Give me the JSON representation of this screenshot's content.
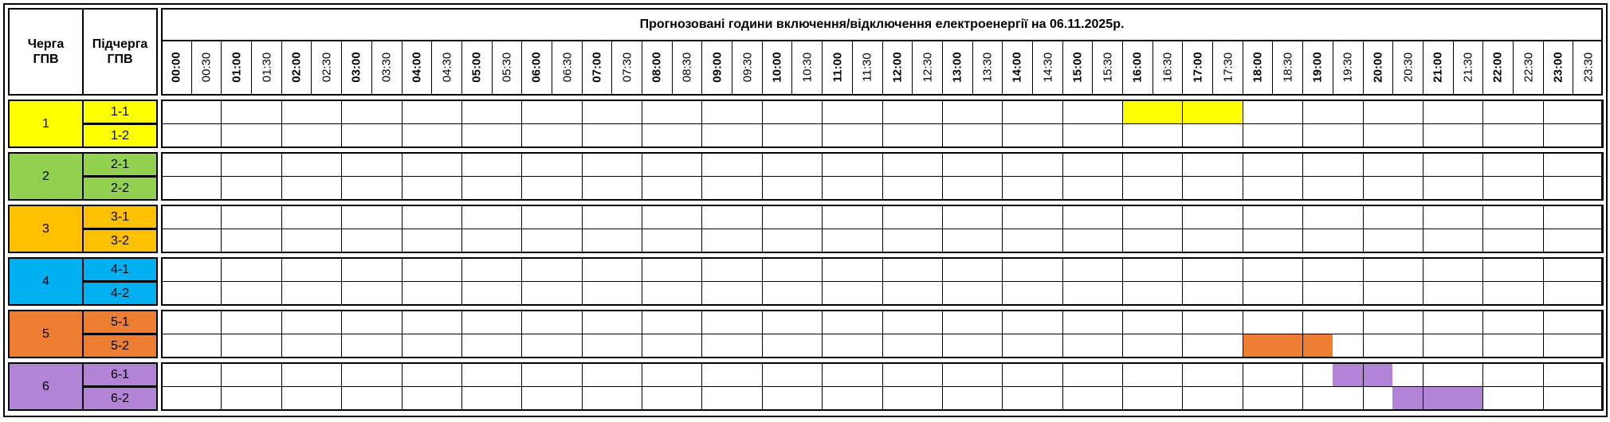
{
  "header": {
    "queue_label": "Черга ГПВ",
    "subqueue_label": "Підчерга ГПВ",
    "title": "Прогнозовані години включення/відключення електроенергії на 06.11.2025р."
  },
  "times": [
    "00:00",
    "00:30",
    "01:00",
    "01:30",
    "02:00",
    "02:30",
    "03:00",
    "03:30",
    "04:00",
    "04:30",
    "05:00",
    "05:30",
    "06:00",
    "06:30",
    "07:00",
    "07:30",
    "08:00",
    "08:30",
    "09:00",
    "09:30",
    "10:00",
    "10:30",
    "11:00",
    "11:30",
    "12:00",
    "12:30",
    "13:00",
    "13:30",
    "14:00",
    "14:30",
    "15:00",
    "15:30",
    "16:00",
    "16:30",
    "17:00",
    "17:30",
    "18:00",
    "18:30",
    "19:00",
    "19:30",
    "20:00",
    "20:30",
    "21:00",
    "21:30",
    "22:00",
    "22:30",
    "23:00",
    "23:30"
  ],
  "groups": [
    {
      "label": "1",
      "color": "#FFFF00",
      "subgroups": [
        {
          "label": "1-1",
          "outages": [
            {
              "from": "16:00",
              "to": "18:00"
            }
          ]
        },
        {
          "label": "1-2",
          "outages": []
        }
      ]
    },
    {
      "label": "2",
      "color": "#92D050",
      "subgroups": [
        {
          "label": "2-1",
          "outages": []
        },
        {
          "label": "2-2",
          "outages": []
        }
      ]
    },
    {
      "label": "3",
      "color": "#FFC000",
      "subgroups": [
        {
          "label": "3-1",
          "outages": []
        },
        {
          "label": "3-2",
          "outages": []
        }
      ]
    },
    {
      "label": "4",
      "color": "#00B0F0",
      "subgroups": [
        {
          "label": "4-1",
          "outages": []
        },
        {
          "label": "4-2",
          "outages": []
        }
      ]
    },
    {
      "label": "5",
      "color": "#ED7D31",
      "subgroups": [
        {
          "label": "5-1",
          "outages": []
        },
        {
          "label": "5-2",
          "outages": [
            {
              "from": "18:00",
              "to": "19:30"
            }
          ]
        }
      ]
    },
    {
      "label": "6",
      "color": "#B383D8",
      "subgroups": [
        {
          "label": "6-1",
          "outages": [
            {
              "from": "19:30",
              "to": "20:30"
            }
          ]
        },
        {
          "label": "6-2",
          "outages": [
            {
              "from": "20:30",
              "to": "22:00"
            }
          ]
        }
      ]
    }
  ]
}
